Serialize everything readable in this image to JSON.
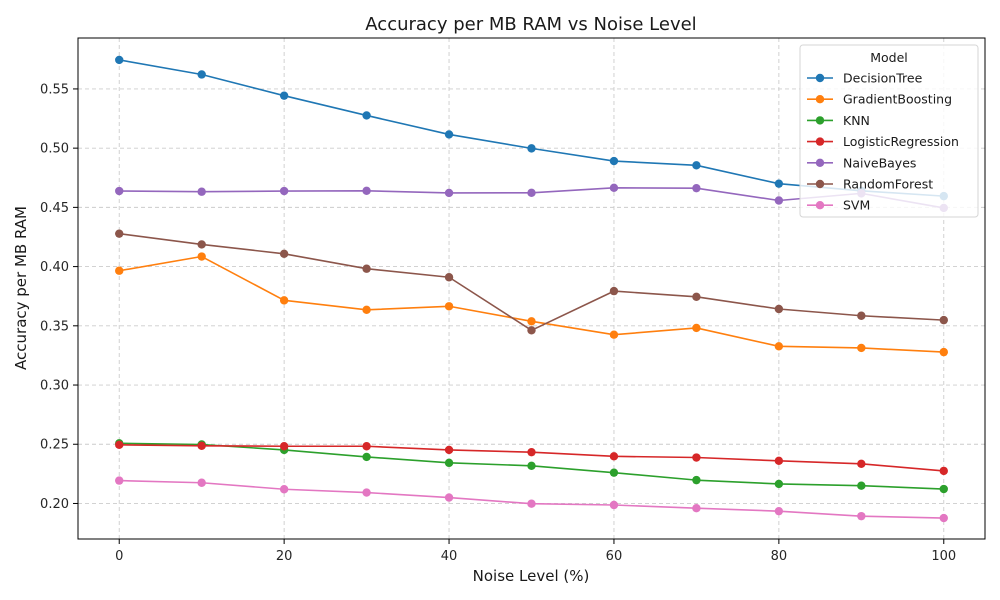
{
  "chart_data": {
    "type": "line",
    "title": "Accuracy per MB RAM vs Noise Level",
    "xlabel": "Noise Level (%)",
    "ylabel": "Accuracy per MB RAM",
    "x": [
      0,
      10,
      20,
      30,
      40,
      50,
      60,
      70,
      80,
      90,
      100
    ],
    "xlim": [
      -5,
      105
    ],
    "ylim": [
      0.17,
      0.593
    ],
    "xticks": [
      0,
      20,
      40,
      60,
      80,
      100
    ],
    "yticks": [
      0.2,
      0.25,
      0.3,
      0.35,
      0.4,
      0.45,
      0.5,
      0.55
    ],
    "ytick_labels": [
      "0.20",
      "0.25",
      "0.30",
      "0.35",
      "0.40",
      "0.45",
      "0.50",
      "0.55"
    ],
    "grid": true,
    "legend": {
      "title": "Model",
      "placement": "upper-right"
    },
    "series": [
      {
        "name": "DecisionTree",
        "color": "#1f77b4",
        "values": [
          0.5745,
          0.5622,
          0.5443,
          0.5276,
          0.5116,
          0.4998,
          0.4891,
          0.4855,
          0.47,
          0.464,
          0.4595
        ]
      },
      {
        "name": "GradientBoosting",
        "color": "#ff7f0e",
        "values": [
          0.3965,
          0.4085,
          0.3715,
          0.3635,
          0.3665,
          0.3538,
          0.3425,
          0.3482,
          0.3327,
          0.3313,
          0.3278
        ]
      },
      {
        "name": "KNN",
        "color": "#2ca02c",
        "values": [
          0.2508,
          0.2498,
          0.2452,
          0.2393,
          0.2343,
          0.2318,
          0.226,
          0.2197,
          0.2165,
          0.215,
          0.2122
        ]
      },
      {
        "name": "LogisticRegression",
        "color": "#d62728",
        "values": [
          0.2495,
          0.2487,
          0.2483,
          0.2483,
          0.2452,
          0.2433,
          0.2398,
          0.2388,
          0.236,
          0.2335,
          0.2275
        ]
      },
      {
        "name": "NaiveBayes",
        "color": "#9467bd",
        "values": [
          0.4638,
          0.4632,
          0.4638,
          0.464,
          0.4622,
          0.4623,
          0.4665,
          0.4662,
          0.4558,
          0.4618,
          0.4495
        ]
      },
      {
        "name": "RandomForest",
        "color": "#8c564b",
        "values": [
          0.4278,
          0.4187,
          0.4108,
          0.3982,
          0.391,
          0.3462,
          0.3793,
          0.3745,
          0.3642,
          0.3585,
          0.3548
        ]
      },
      {
        "name": "SVM",
        "color": "#e377c2",
        "values": [
          0.2193,
          0.2175,
          0.212,
          0.2092,
          0.205,
          0.1998,
          0.1987,
          0.196,
          0.1935,
          0.1893,
          0.1877
        ]
      }
    ]
  }
}
